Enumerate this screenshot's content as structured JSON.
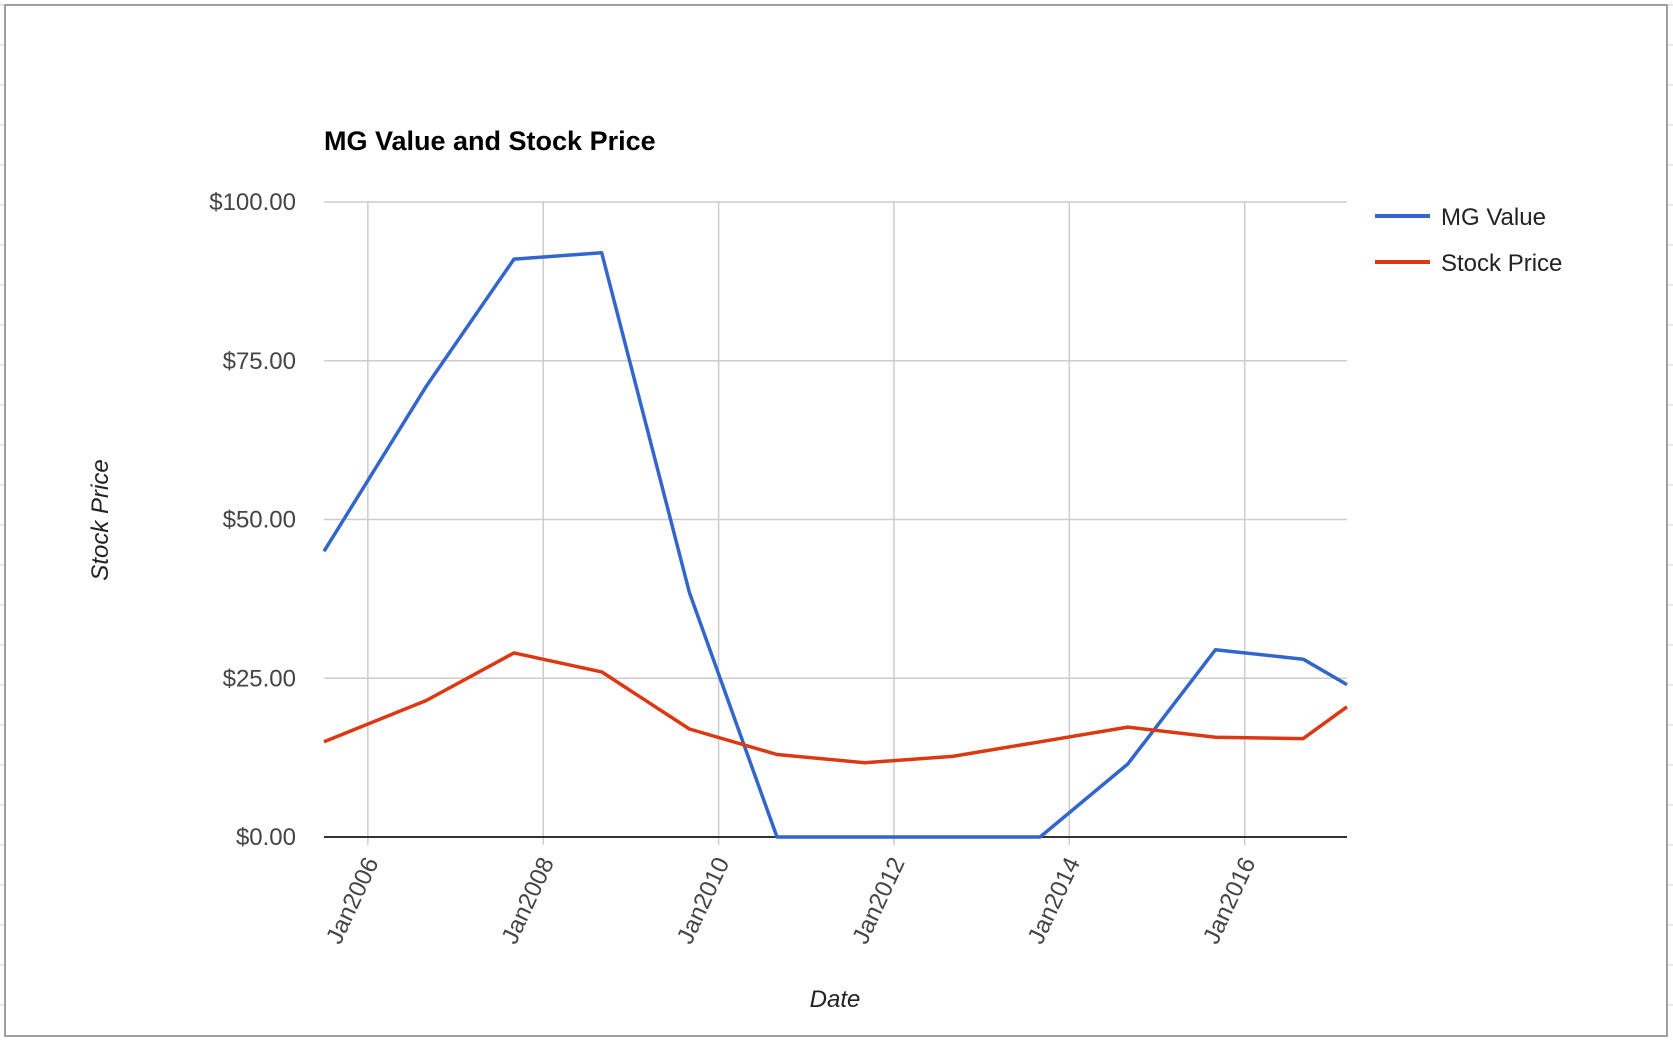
{
  "chart_data": {
    "type": "line",
    "title": "MG Value and Stock Price",
    "xlabel": "Date",
    "ylabel": "Stock Price",
    "x_tick_labels": [
      "Jan2006",
      "Jan2008",
      "Jan2010",
      "Jan2012",
      "Jan2014",
      "Jan2016"
    ],
    "y_tick_labels": [
      "$100.00",
      "$75.00",
      "$50.00",
      "$25.00",
      "$0.00"
    ],
    "y_ticks": [
      100,
      75,
      50,
      25,
      0
    ],
    "ylim": [
      0,
      100
    ],
    "xlim": [
      "2005-07",
      "2017-03"
    ],
    "x_ticks": [
      "2006-01",
      "2008-01",
      "2010-01",
      "2012-01",
      "2014-01",
      "2016-01"
    ],
    "x": [
      "2005-07",
      "2006-09",
      "2007-09",
      "2008-09",
      "2009-09",
      "2010-09",
      "2011-09",
      "2012-09",
      "2013-09",
      "2014-09",
      "2015-09",
      "2016-09",
      "2017-03"
    ],
    "series": [
      {
        "name": "MG Value",
        "color": "#3366cc",
        "values": [
          45.0,
          71.0,
          91.0,
          92.0,
          38.5,
          0.0,
          0.0,
          0.0,
          0.0,
          11.5,
          29.5,
          28.0,
          24.0
        ]
      },
      {
        "name": "Stock Price",
        "color": "#dc3912",
        "values": [
          15.0,
          21.5,
          29.0,
          26.0,
          17.0,
          13.0,
          11.7,
          12.7,
          15.0,
          17.3,
          15.7,
          15.5,
          20.5
        ]
      }
    ],
    "grid": true,
    "legend_position": "right"
  }
}
